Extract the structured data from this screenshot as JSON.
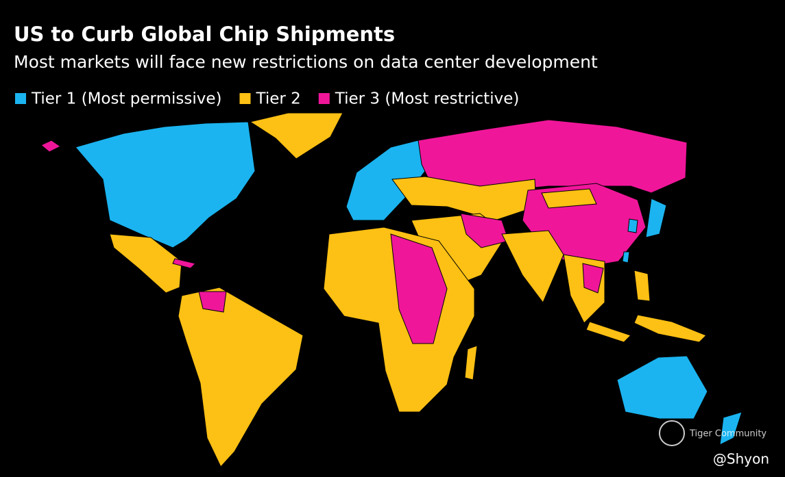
{
  "header": {
    "title": "US to Curb Global Chip Shipments",
    "subtitle": "Most markets will face new restrictions on data center development"
  },
  "legend": {
    "items": [
      {
        "label": "Tier 1 (Most permissive)",
        "color": "#1bb4f0"
      },
      {
        "label": "Tier 2",
        "color": "#fdc014"
      },
      {
        "label": "Tier 3 (Most restrictive)",
        "color": "#f0169a"
      }
    ]
  },
  "watermark": {
    "brand": "Tiger Community",
    "handle": "@Shyon"
  }
}
